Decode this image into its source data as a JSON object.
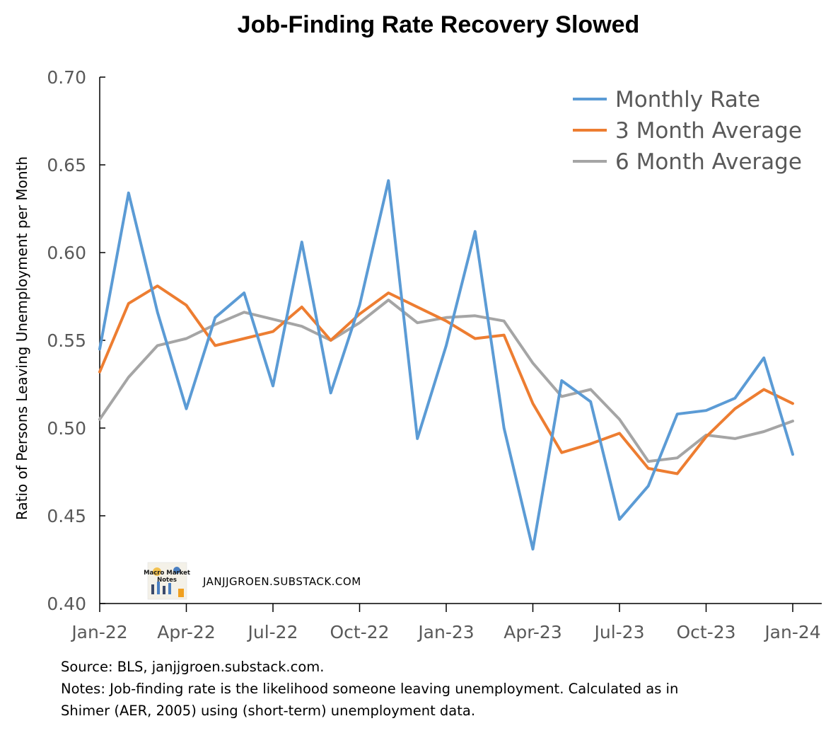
{
  "chart_data": {
    "type": "line",
    "title": "Job-Finding Rate Recovery Slowed",
    "ylabel": "Ratio of Persons Leaving Unemployment per Month",
    "xlabel": "",
    "ylim": [
      0.4,
      0.7
    ],
    "yticks": [
      "0.70",
      "0.65",
      "0.60",
      "0.55",
      "0.50",
      "0.45",
      "0.40"
    ],
    "ytick_values": [
      0.7,
      0.65,
      0.6,
      0.55,
      0.5,
      0.45,
      0.4
    ],
    "x": [
      "Jan-22",
      "Feb-22",
      "Mar-22",
      "Apr-22",
      "May-22",
      "Jun-22",
      "Jul-22",
      "Aug-22",
      "Sep-22",
      "Oct-22",
      "Nov-22",
      "Dec-22",
      "Jan-23",
      "Feb-23",
      "Mar-23",
      "Apr-23",
      "May-23",
      "Jun-23",
      "Jul-23",
      "Aug-23",
      "Sep-23",
      "Oct-23",
      "Nov-23",
      "Dec-23",
      "Jan-24"
    ],
    "xtick_labels": [
      "Jan-22",
      "Apr-22",
      "Jul-22",
      "Oct-22",
      "Jan-23",
      "Apr-23",
      "Jul-23",
      "Oct-23",
      "Jan-24"
    ],
    "grid": false,
    "legend_position": "top-right",
    "series": [
      {
        "name": "Monthly Rate",
        "color": "#5b9bd5",
        "values": [
          0.545,
          0.634,
          0.566,
          0.511,
          0.563,
          0.577,
          0.524,
          0.606,
          0.52,
          0.57,
          0.641,
          0.494,
          0.547,
          0.612,
          0.5,
          0.431,
          0.527,
          0.515,
          0.448,
          0.467,
          0.508,
          0.51,
          0.517,
          0.54,
          0.485
        ]
      },
      {
        "name": "3 Month Average",
        "color": "#ed7d31",
        "values": [
          0.532,
          0.571,
          0.581,
          0.57,
          0.547,
          0.551,
          0.555,
          0.569,
          0.55,
          0.565,
          0.577,
          0.569,
          0.561,
          0.551,
          0.553,
          0.514,
          0.486,
          0.491,
          0.497,
          0.477,
          0.474,
          0.495,
          0.511,
          0.522,
          0.514
        ]
      },
      {
        "name": "6 Month Average",
        "color": "#a5a5a5",
        "values": [
          0.505,
          0.529,
          0.547,
          0.551,
          0.559,
          0.566,
          0.562,
          0.558,
          0.55,
          0.56,
          0.573,
          0.56,
          0.563,
          0.564,
          0.561,
          0.537,
          0.518,
          0.522,
          0.505,
          0.481,
          0.483,
          0.496,
          0.494,
          0.498,
          0.504
        ]
      }
    ]
  },
  "watermark": {
    "logo_text": "Macro Market Notes",
    "site": "JANJJGROEN.SUBSTACK.COM"
  },
  "footnotes": {
    "source": "Source: BLS, janjjgroen.substack.com.",
    "notes_line1": "Notes: Job-finding rate is the likelihood someone leaving unemployment. Calculated as in",
    "notes_line2": "Shimer (AER, 2005) using (short-term) unemployment data."
  }
}
